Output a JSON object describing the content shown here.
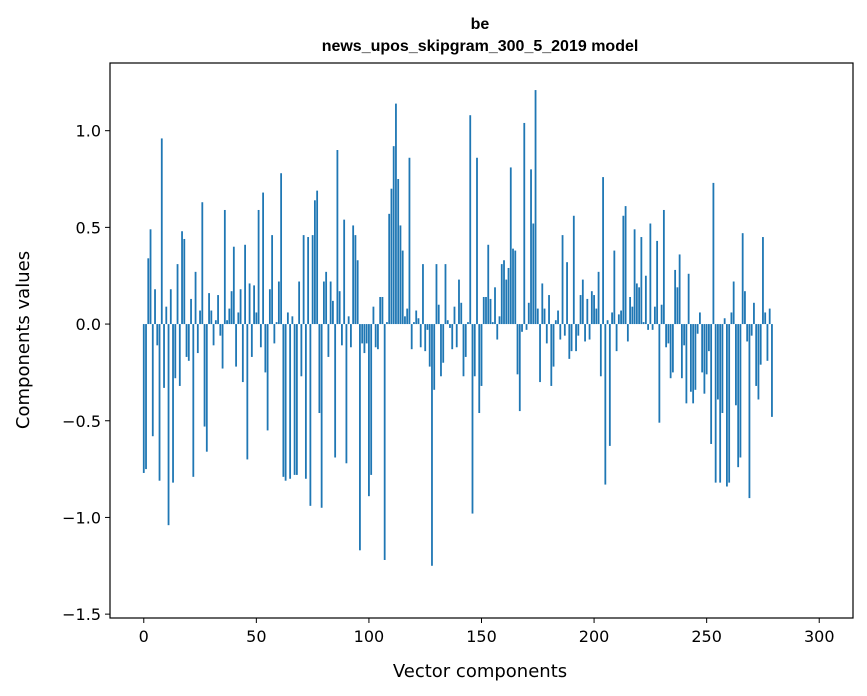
{
  "chart_data": {
    "type": "bar",
    "title": "be",
    "subtitle": "news_upos_skipgram_300_5_2019 model",
    "xlabel": "Vector components",
    "ylabel": "Components values",
    "xlim": [
      -15,
      315
    ],
    "ylim": [
      -1.52,
      1.35
    ],
    "xticks": [
      0,
      50,
      100,
      150,
      200,
      250,
      300
    ],
    "yticks": [
      -1.5,
      -1.0,
      -0.5,
      0.0,
      0.5,
      1.0
    ],
    "ytick_labels": [
      "−1.5",
      "−1.0",
      "−0.5",
      "0.0",
      "0.5",
      "1.0"
    ],
    "grid": false,
    "bar_color": "#1f77b4",
    "x_start": 0,
    "values": [
      -0.77,
      -0.75,
      0.34,
      0.49,
      -0.58,
      0.18,
      -0.11,
      -0.81,
      0.96,
      -0.33,
      0.09,
      -1.04,
      0.18,
      -0.82,
      -0.28,
      0.31,
      -0.32,
      0.48,
      0.44,
      -0.17,
      -0.19,
      0.13,
      -0.79,
      0.27,
      -0.15,
      0.07,
      0.63,
      -0.53,
      -0.66,
      0.16,
      0.07,
      -0.11,
      0.02,
      0.15,
      -0.06,
      -0.23,
      0.59,
      0.02,
      0.08,
      0.17,
      0.4,
      -0.22,
      0.06,
      0.18,
      -0.3,
      0.41,
      -0.7,
      0.21,
      -0.17,
      0.2,
      0.06,
      0.59,
      -0.12,
      0.68,
      -0.25,
      -0.55,
      0.18,
      0.46,
      -0.1,
      0.01,
      0.22,
      0.78,
      -0.79,
      -0.81,
      0.06,
      -0.8,
      0.04,
      -0.78,
      -0.78,
      0.22,
      -0.27,
      0.46,
      -0.8,
      0.45,
      -0.94,
      0.46,
      0.64,
      0.69,
      -0.46,
      -0.95,
      0.22,
      0.27,
      -0.17,
      0.22,
      0.12,
      -0.69,
      0.9,
      0.17,
      -0.11,
      0.54,
      -0.72,
      0.04,
      -0.12,
      0.51,
      0.46,
      0.33,
      -1.17,
      -0.1,
      -0.15,
      -0.1,
      -0.89,
      -0.78,
      0.09,
      -0.12,
      -0.13,
      0.14,
      0.14,
      -1.22,
      0.01,
      0.57,
      0.7,
      0.92,
      1.14,
      0.75,
      0.51,
      0.38,
      0.04,
      0.08,
      0.86,
      -0.13,
      0.01,
      0.07,
      0.03,
      -0.12,
      0.31,
      -0.14,
      -0.03,
      -0.22,
      -1.25,
      -0.34,
      0.31,
      0.1,
      -0.27,
      -0.2,
      0.31,
      0.02,
      -0.02,
      -0.13,
      0.09,
      -0.12,
      0.23,
      0.11,
      -0.27,
      -0.17,
      0.01,
      1.08,
      -0.98,
      -0.27,
      0.86,
      -0.46,
      -0.32,
      0.14,
      0.14,
      0.41,
      0.13,
      0.01,
      0.19,
      -0.08,
      0.04,
      0.31,
      0.33,
      0.23,
      0.29,
      0.81,
      0.39,
      0.38,
      -0.26,
      -0.45,
      -0.04,
      1.04,
      -0.03,
      0.11,
      0.8,
      0.52,
      1.21,
      0.08,
      -0.3,
      0.21,
      0.08,
      -0.1,
      0.15,
      -0.32,
      -0.22,
      0.02,
      0.07,
      -0.08,
      0.46,
      -0.06,
      0.32,
      -0.18,
      -0.14,
      0.56,
      -0.14,
      -0.06,
      0.15,
      0.23,
      -0.09,
      0.13,
      -0.08,
      0.17,
      0.15,
      0.08,
      0.27,
      -0.27,
      0.76,
      -0.83,
      0.02,
      -0.63,
      0.06,
      0.38,
      -0.14,
      0.05,
      0.07,
      0.56,
      0.61,
      -0.09,
      0.14,
      0.09,
      0.49,
      0.21,
      0.19,
      0.45,
      0.01,
      0.25,
      -0.03,
      0.52,
      -0.03,
      0.09,
      0.43,
      -0.51,
      0.1,
      0.59,
      -0.12,
      -0.1,
      -0.28,
      -0.25,
      0.28,
      0.19,
      0.36,
      -0.28,
      -0.11,
      -0.41,
      0.26,
      -0.35,
      -0.41,
      -0.34,
      -0.05,
      0.06,
      -0.25,
      -0.36,
      -0.26,
      -0.14,
      -0.62,
      0.73,
      -0.82,
      -0.39,
      -0.82,
      -0.46,
      0.03,
      -0.84,
      -0.82,
      0.06,
      0.22,
      -0.42,
      -0.74,
      -0.69,
      0.47,
      0.17,
      -0.09,
      -0.9,
      -0.06,
      0.11,
      -0.32,
      -0.39,
      -0.21,
      0.45,
      0.06,
      -0.19,
      0.08,
      -0.48
    ]
  }
}
